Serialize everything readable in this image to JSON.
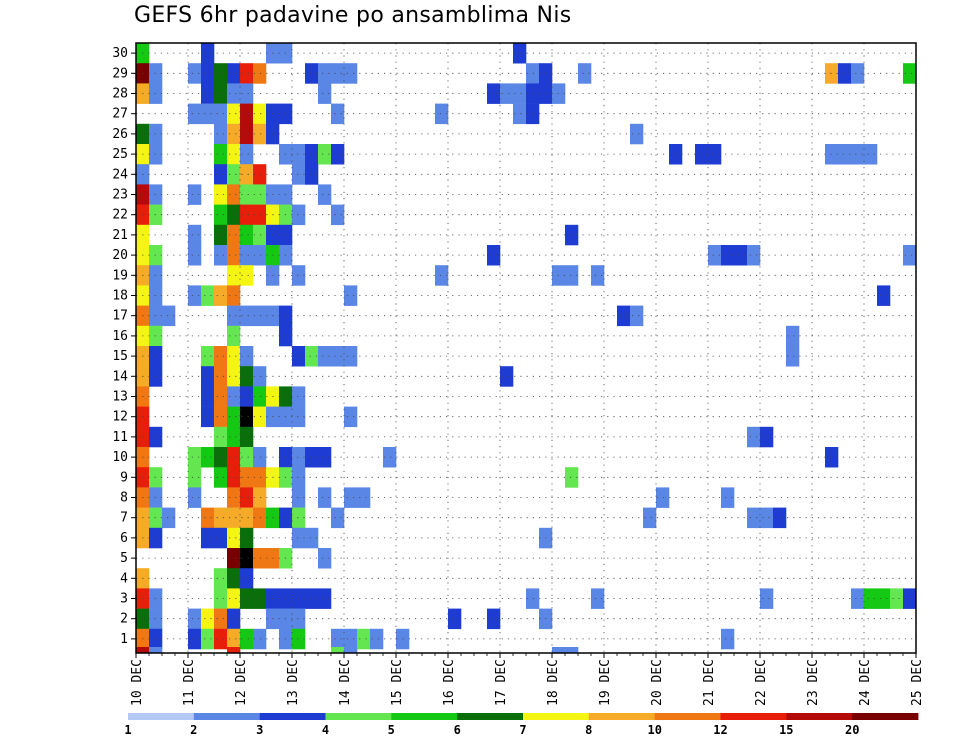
{
  "chart_data": {
    "type": "heatmap",
    "title": "GEFS 6hr padavine po ansamblima Nis",
    "ylabel": "",
    "xlabel": "",
    "x_tick_labels": [
      "10 DEC",
      "11 DEC",
      "12 DEC",
      "13 DEC",
      "14 DEC",
      "15 DEC",
      "16 DEC",
      "17 DEC",
      "18 DEC",
      "19 DEC",
      "20 DEC",
      "21 DEC",
      "22 DEC",
      "23 DEC",
      "24 DEC",
      "25 DEC"
    ],
    "y_tick_labels": [
      "1",
      "2",
      "3",
      "4",
      "5",
      "6",
      "7",
      "8",
      "9",
      "10",
      "11",
      "12",
      "13",
      "14",
      "15",
      "16",
      "17",
      "18",
      "19",
      "20",
      "21",
      "22",
      "23",
      "24",
      "25",
      "26",
      "27",
      "28",
      "29",
      "30"
    ],
    "n_steps": 60,
    "grid": "dotted",
    "color_scale": {
      "labels": [
        "1",
        "2",
        "3",
        "4",
        "5",
        "6",
        "7",
        "8",
        "10",
        "12",
        "15",
        "20"
      ],
      "colors": [
        "#b4c8f5",
        "#5a87e6",
        "#1e3cd2",
        "#64e650",
        "#14c814",
        "#0a6e0a",
        "#f5f514",
        "#f5aa28",
        "#f07814",
        "#e61e0a",
        "#b40a0a",
        "#780000"
      ]
    },
    "cells": [
      [
        30,
        0,
        4
      ],
      [
        30,
        5,
        2
      ],
      [
        30,
        10,
        1
      ],
      [
        30,
        11,
        1
      ],
      [
        30,
        29,
        2
      ],
      [
        29,
        0,
        11
      ],
      [
        29,
        1,
        1
      ],
      [
        29,
        4,
        1
      ],
      [
        29,
        5,
        2
      ],
      [
        29,
        6,
        5
      ],
      [
        29,
        7,
        2
      ],
      [
        29,
        8,
        9
      ],
      [
        29,
        9,
        8
      ],
      [
        29,
        13,
        2
      ],
      [
        29,
        14,
        1
      ],
      [
        29,
        15,
        1
      ],
      [
        29,
        16,
        1
      ],
      [
        29,
        30,
        1
      ],
      [
        29,
        31,
        2
      ],
      [
        29,
        34,
        1
      ],
      [
        29,
        53,
        7
      ],
      [
        29,
        54,
        2
      ],
      [
        29,
        55,
        1
      ],
      [
        29,
        59,
        4
      ],
      [
        28,
        0,
        7
      ],
      [
        28,
        1,
        1
      ],
      [
        28,
        5,
        2
      ],
      [
        28,
        6,
        5
      ],
      [
        28,
        7,
        1
      ],
      [
        28,
        8,
        1
      ],
      [
        28,
        14,
        1
      ],
      [
        28,
        27,
        2
      ],
      [
        28,
        28,
        1
      ],
      [
        28,
        29,
        1
      ],
      [
        28,
        30,
        2
      ],
      [
        28,
        31,
        2
      ],
      [
        28,
        32,
        1
      ],
      [
        27,
        4,
        1
      ],
      [
        27,
        5,
        1
      ],
      [
        27,
        6,
        1
      ],
      [
        27,
        7,
        6
      ],
      [
        27,
        8,
        10
      ],
      [
        27,
        9,
        6
      ],
      [
        27,
        10,
        2
      ],
      [
        27,
        11,
        2
      ],
      [
        27,
        15,
        1
      ],
      [
        27,
        23,
        1
      ],
      [
        27,
        29,
        1
      ],
      [
        27,
        30,
        2
      ],
      [
        26,
        0,
        5
      ],
      [
        26,
        1,
        1
      ],
      [
        26,
        6,
        1
      ],
      [
        26,
        7,
        7
      ],
      [
        26,
        8,
        10
      ],
      [
        26,
        9,
        7
      ],
      [
        26,
        10,
        2
      ],
      [
        26,
        38,
        1
      ],
      [
        25,
        0,
        6
      ],
      [
        25,
        1,
        1
      ],
      [
        25,
        6,
        4
      ],
      [
        25,
        7,
        6
      ],
      [
        25,
        8,
        1
      ],
      [
        25,
        11,
        1
      ],
      [
        25,
        12,
        1
      ],
      [
        25,
        13,
        2
      ],
      [
        25,
        14,
        3
      ],
      [
        25,
        15,
        2
      ],
      [
        25,
        41,
        2
      ],
      [
        25,
        43,
        2
      ],
      [
        25,
        44,
        2
      ],
      [
        25,
        53,
        1
      ],
      [
        25,
        54,
        1
      ],
      [
        25,
        55,
        1
      ],
      [
        25,
        56,
        1
      ],
      [
        24,
        0,
        1
      ],
      [
        24,
        6,
        2
      ],
      [
        24,
        7,
        3
      ],
      [
        24,
        8,
        7
      ],
      [
        24,
        9,
        9
      ],
      [
        24,
        12,
        1
      ],
      [
        24,
        13,
        2
      ],
      [
        23,
        0,
        10
      ],
      [
        23,
        1,
        1
      ],
      [
        23,
        4,
        1
      ],
      [
        23,
        6,
        6
      ],
      [
        23,
        7,
        8
      ],
      [
        23,
        8,
        3
      ],
      [
        23,
        9,
        3
      ],
      [
        23,
        10,
        1
      ],
      [
        23,
        11,
        1
      ],
      [
        23,
        14,
        1
      ],
      [
        22,
        0,
        9
      ],
      [
        22,
        1,
        3
      ],
      [
        22,
        6,
        4
      ],
      [
        22,
        7,
        5
      ],
      [
        22,
        8,
        9
      ],
      [
        22,
        9,
        9
      ],
      [
        22,
        10,
        6
      ],
      [
        22,
        11,
        3
      ],
      [
        22,
        12,
        1
      ],
      [
        22,
        15,
        1
      ],
      [
        21,
        0,
        6
      ],
      [
        21,
        4,
        1
      ],
      [
        21,
        6,
        5
      ],
      [
        21,
        7,
        8
      ],
      [
        21,
        8,
        4
      ],
      [
        21,
        9,
        3
      ],
      [
        21,
        10,
        2
      ],
      [
        21,
        11,
        2
      ],
      [
        21,
        33,
        2
      ],
      [
        20,
        0,
        6
      ],
      [
        20,
        1,
        3
      ],
      [
        20,
        4,
        1
      ],
      [
        20,
        6,
        1
      ],
      [
        20,
        7,
        8
      ],
      [
        20,
        8,
        1
      ],
      [
        20,
        9,
        1
      ],
      [
        20,
        10,
        4
      ],
      [
        20,
        11,
        1
      ],
      [
        20,
        27,
        2
      ],
      [
        20,
        44,
        1
      ],
      [
        20,
        45,
        2
      ],
      [
        20,
        46,
        2
      ],
      [
        20,
        47,
        1
      ],
      [
        20,
        59,
        1
      ],
      [
        19,
        0,
        7
      ],
      [
        19,
        1,
        1
      ],
      [
        19,
        7,
        6
      ],
      [
        19,
        8,
        6
      ],
      [
        19,
        10,
        1
      ],
      [
        19,
        12,
        1
      ],
      [
        19,
        23,
        1
      ],
      [
        19,
        32,
        1
      ],
      [
        19,
        33,
        1
      ],
      [
        19,
        35,
        1
      ],
      [
        18,
        0,
        6
      ],
      [
        18,
        1,
        1
      ],
      [
        18,
        4,
        1
      ],
      [
        18,
        5,
        3
      ],
      [
        18,
        6,
        7
      ],
      [
        18,
        7,
        8
      ],
      [
        18,
        16,
        1
      ],
      [
        18,
        57,
        2
      ],
      [
        17,
        0,
        8
      ],
      [
        17,
        1,
        1
      ],
      [
        17,
        2,
        1
      ],
      [
        17,
        7,
        1
      ],
      [
        17,
        8,
        1
      ],
      [
        17,
        9,
        1
      ],
      [
        17,
        10,
        1
      ],
      [
        17,
        11,
        2
      ],
      [
        17,
        37,
        2
      ],
      [
        17,
        38,
        1
      ],
      [
        16,
        0,
        6
      ],
      [
        16,
        1,
        3
      ],
      [
        16,
        7,
        3
      ],
      [
        16,
        11,
        2
      ],
      [
        16,
        50,
        1
      ],
      [
        15,
        0,
        7
      ],
      [
        15,
        1,
        2
      ],
      [
        15,
        5,
        3
      ],
      [
        15,
        6,
        8
      ],
      [
        15,
        7,
        6
      ],
      [
        15,
        8,
        1
      ],
      [
        15,
        12,
        2
      ],
      [
        15,
        13,
        3
      ],
      [
        15,
        14,
        1
      ],
      [
        15,
        15,
        1
      ],
      [
        15,
        16,
        1
      ],
      [
        15,
        50,
        1
      ],
      [
        14,
        0,
        7
      ],
      [
        14,
        1,
        2
      ],
      [
        14,
        5,
        2
      ],
      [
        14,
        6,
        8
      ],
      [
        14,
        7,
        6
      ],
      [
        14,
        8,
        5
      ],
      [
        14,
        9,
        1
      ],
      [
        14,
        28,
        2
      ],
      [
        13,
        0,
        8
      ],
      [
        13,
        5,
        2
      ],
      [
        13,
        6,
        8
      ],
      [
        13,
        7,
        1
      ],
      [
        13,
        8,
        2
      ],
      [
        13,
        9,
        4
      ],
      [
        13,
        10,
        6
      ],
      [
        13,
        11,
        5
      ],
      [
        13,
        12,
        1
      ],
      [
        12,
        0,
        9
      ],
      [
        12,
        5,
        2
      ],
      [
        12,
        6,
        8
      ],
      [
        12,
        7,
        4
      ],
      [
        12,
        8,
        12
      ],
      [
        12,
        9,
        6
      ],
      [
        12,
        10,
        1
      ],
      [
        12,
        11,
        1
      ],
      [
        12,
        12,
        1
      ],
      [
        12,
        16,
        1
      ],
      [
        11,
        0,
        9
      ],
      [
        11,
        1,
        2
      ],
      [
        11,
        6,
        3
      ],
      [
        11,
        7,
        4
      ],
      [
        11,
        8,
        5
      ],
      [
        11,
        47,
        1
      ],
      [
        11,
        48,
        2
      ],
      [
        10,
        0,
        8
      ],
      [
        10,
        4,
        3
      ],
      [
        10,
        5,
        4
      ],
      [
        10,
        6,
        5
      ],
      [
        10,
        7,
        9
      ],
      [
        10,
        8,
        3
      ],
      [
        10,
        9,
        1
      ],
      [
        10,
        11,
        2
      ],
      [
        10,
        12,
        1
      ],
      [
        10,
        13,
        2
      ],
      [
        10,
        14,
        2
      ],
      [
        10,
        19,
        1
      ],
      [
        10,
        53,
        2
      ],
      [
        9,
        0,
        9
      ],
      [
        9,
        1,
        3
      ],
      [
        9,
        4,
        3
      ],
      [
        9,
        6,
        4
      ],
      [
        9,
        7,
        9
      ],
      [
        9,
        8,
        8
      ],
      [
        9,
        9,
        8
      ],
      [
        9,
        10,
        6
      ],
      [
        9,
        11,
        3
      ],
      [
        9,
        12,
        1
      ],
      [
        9,
        33,
        3
      ],
      [
        8,
        0,
        8
      ],
      [
        8,
        1,
        1
      ],
      [
        8,
        4,
        1
      ],
      [
        8,
        7,
        8
      ],
      [
        8,
        8,
        9
      ],
      [
        8,
        9,
        7
      ],
      [
        8,
        12,
        1
      ],
      [
        8,
        14,
        1
      ],
      [
        8,
        16,
        1
      ],
      [
        8,
        17,
        1
      ],
      [
        8,
        40,
        1
      ],
      [
        8,
        45,
        1
      ],
      [
        7,
        0,
        7
      ],
      [
        7,
        1,
        3
      ],
      [
        7,
        2,
        1
      ],
      [
        7,
        5,
        8
      ],
      [
        7,
        6,
        7
      ],
      [
        7,
        7,
        7
      ],
      [
        7,
        8,
        7
      ],
      [
        7,
        9,
        8
      ],
      [
        7,
        10,
        4
      ],
      [
        7,
        11,
        2
      ],
      [
        7,
        12,
        3
      ],
      [
        7,
        15,
        1
      ],
      [
        7,
        39,
        1
      ],
      [
        7,
        47,
        1
      ],
      [
        7,
        48,
        1
      ],
      [
        7,
        49,
        2
      ],
      [
        6,
        0,
        7
      ],
      [
        6,
        1,
        2
      ],
      [
        6,
        5,
        2
      ],
      [
        6,
        6,
        2
      ],
      [
        6,
        7,
        6
      ],
      [
        6,
        8,
        5
      ],
      [
        6,
        12,
        1
      ],
      [
        6,
        13,
        1
      ],
      [
        6,
        31,
        1
      ],
      [
        5,
        7,
        11
      ],
      [
        5,
        8,
        12
      ],
      [
        5,
        9,
        8
      ],
      [
        5,
        10,
        8
      ],
      [
        5,
        11,
        3
      ],
      [
        5,
        14,
        1
      ],
      [
        4,
        0,
        7
      ],
      [
        4,
        6,
        3
      ],
      [
        4,
        7,
        5
      ],
      [
        4,
        8,
        2
      ],
      [
        3,
        0,
        9
      ],
      [
        3,
        1,
        1
      ],
      [
        3,
        6,
        3
      ],
      [
        3,
        7,
        6
      ],
      [
        3,
        8,
        5
      ],
      [
        3,
        9,
        5
      ],
      [
        3,
        10,
        2
      ],
      [
        3,
        11,
        2
      ],
      [
        3,
        12,
        2
      ],
      [
        3,
        13,
        2
      ],
      [
        3,
        14,
        2
      ],
      [
        3,
        30,
        1
      ],
      [
        3,
        35,
        1
      ],
      [
        3,
        48,
        1
      ],
      [
        3,
        55,
        1
      ],
      [
        3,
        56,
        4
      ],
      [
        3,
        57,
        4
      ],
      [
        3,
        58,
        3
      ],
      [
        3,
        59,
        2
      ],
      [
        2,
        0,
        5
      ],
      [
        2,
        1,
        1
      ],
      [
        2,
        4,
        1
      ],
      [
        2,
        5,
        6
      ],
      [
        2,
        6,
        8
      ],
      [
        2,
        7,
        2
      ],
      [
        2,
        10,
        1
      ],
      [
        2,
        11,
        1
      ],
      [
        2,
        12,
        1
      ],
      [
        2,
        24,
        2
      ],
      [
        2,
        27,
        2
      ],
      [
        2,
        31,
        1
      ],
      [
        1,
        0,
        8
      ],
      [
        1,
        1,
        2
      ],
      [
        1,
        4,
        2
      ],
      [
        1,
        5,
        3
      ],
      [
        1,
        6,
        9
      ],
      [
        1,
        7,
        7
      ],
      [
        1,
        8,
        4
      ],
      [
        1,
        9,
        1
      ],
      [
        1,
        11,
        1
      ],
      [
        1,
        12,
        4
      ],
      [
        1,
        15,
        1
      ],
      [
        1,
        16,
        1
      ],
      [
        1,
        17,
        3
      ],
      [
        1,
        18,
        1
      ],
      [
        1,
        20,
        1
      ],
      [
        1,
        45,
        1
      ],
      [
        0,
        0,
        10
      ],
      [
        0,
        1,
        1
      ],
      [
        0,
        7,
        9
      ],
      [
        0,
        15,
        3
      ],
      [
        0,
        16,
        1
      ],
      [
        0,
        32,
        1
      ],
      [
        0,
        33,
        1
      ]
    ]
  }
}
